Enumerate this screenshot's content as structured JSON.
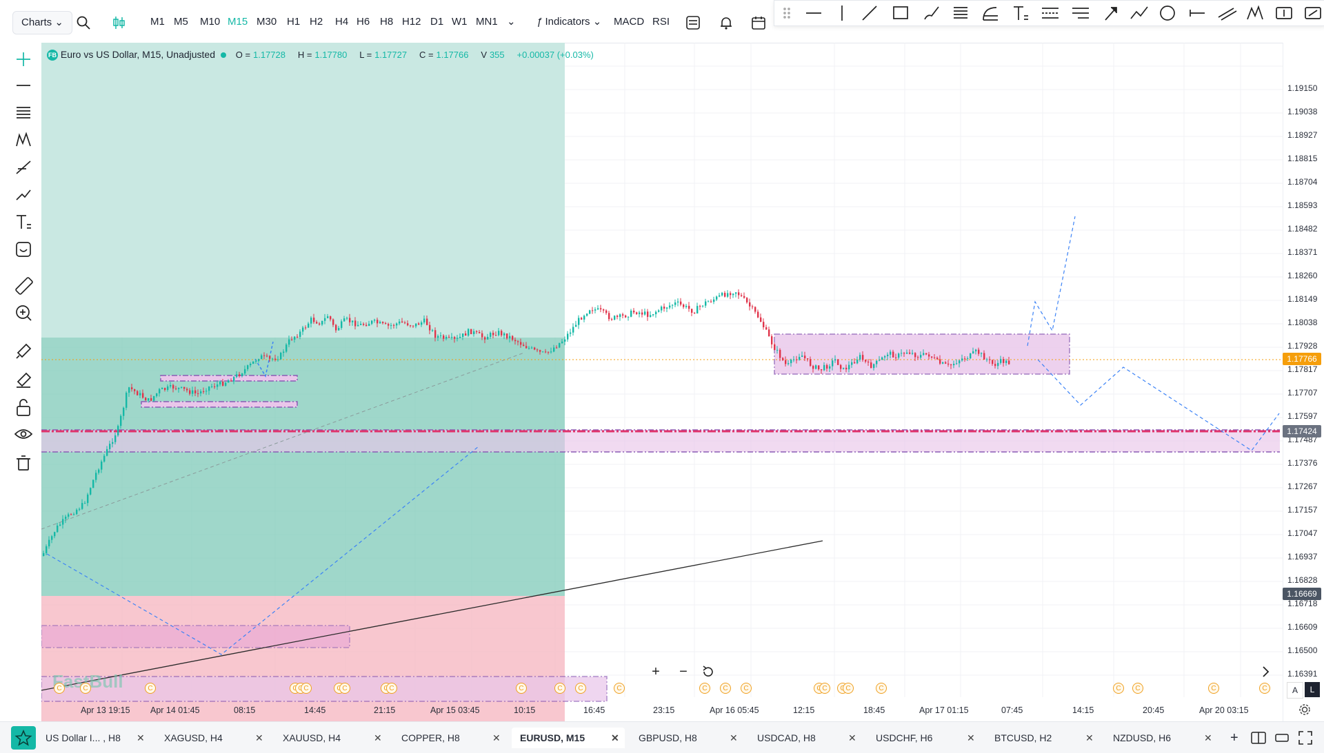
{
  "toolbar": {
    "charts_label": "Charts",
    "timeframes": [
      "M1",
      "M5",
      "M10",
      "M15",
      "M30",
      "H1",
      "H2",
      "H4",
      "H6",
      "H8",
      "H12",
      "D1",
      "W1",
      "MN1"
    ],
    "active_timeframe": "M15",
    "indicators_label": "Indicators",
    "macd_label": "MACD",
    "rsi_label": "RSI"
  },
  "legend": {
    "badge": "FB",
    "symbol_text": "Euro vs US Dollar, M15, Unadjusted",
    "open_label": "O =",
    "open": "1.17728",
    "high_label": "H =",
    "high": "1.17780",
    "low_label": "L =",
    "low": "1.17727",
    "close_label": "C =",
    "close": "1.17766",
    "volume_label": "V",
    "volume": "355",
    "change": "+0.00037 (+0.03%)"
  },
  "price_axis": {
    "labels": [
      "1.19150",
      "1.19038",
      "1.18927",
      "1.18815",
      "1.18704",
      "1.18593",
      "1.18482",
      "1.18371",
      "1.18260",
      "1.18149",
      "1.18038",
      "1.17928",
      "1.17817",
      "1.17707",
      "1.17597",
      "1.17487",
      "1.17376",
      "1.17267",
      "1.17157",
      "1.17047",
      "1.16937",
      "1.16828",
      "1.16718",
      "1.16609",
      "1.16500",
      "1.16391"
    ],
    "current_price": "1.17766",
    "line_price": "1.17424",
    "cursor_price": "1.16669"
  },
  "time_axis": {
    "labels": [
      "Apr 13 19:15",
      "Apr 14 01:45",
      "08:15",
      "14:45",
      "21:15",
      "Apr 15 03:45",
      "10:15",
      "16:45",
      "23:15",
      "Apr 16 05:45",
      "12:15",
      "18:45",
      "Apr 17 01:15",
      "07:45",
      "14:15",
      "20:45",
      "Apr 20 03:15"
    ]
  },
  "watermark": "FastBull",
  "scale_buttons": {
    "auto": "A",
    "log": "L"
  },
  "event_marker": "C",
  "tabs": [
    {
      "label": "US Dollar I... , H8",
      "active": false
    },
    {
      "label": "XAGUSD, H4",
      "active": false
    },
    {
      "label": "XAUUSD, H4",
      "active": false
    },
    {
      "label": "COPPER, H8",
      "active": false
    },
    {
      "label": "EURUSD, M15",
      "active": true
    },
    {
      "label": "GBPUSD, H8",
      "active": false
    },
    {
      "label": "USDCAD, H8",
      "active": false
    },
    {
      "label": "USDCHF, H6",
      "active": false
    },
    {
      "label": "BTCUSD, H2",
      "active": false
    },
    {
      "label": "NZDUSD, H6",
      "active": false
    }
  ],
  "close_glyph": "✕",
  "colors": {
    "accent": "#14b8a6",
    "current_price_tag": "#f59e0b",
    "line_price_tag": "#6b7280",
    "cursor_price_tag": "#4b5563",
    "profit_zone": "#7fc9b8",
    "loss_zone": "#f6b9c3",
    "box_zone": "#e9c6ea",
    "level_line": "#e0336b"
  }
}
